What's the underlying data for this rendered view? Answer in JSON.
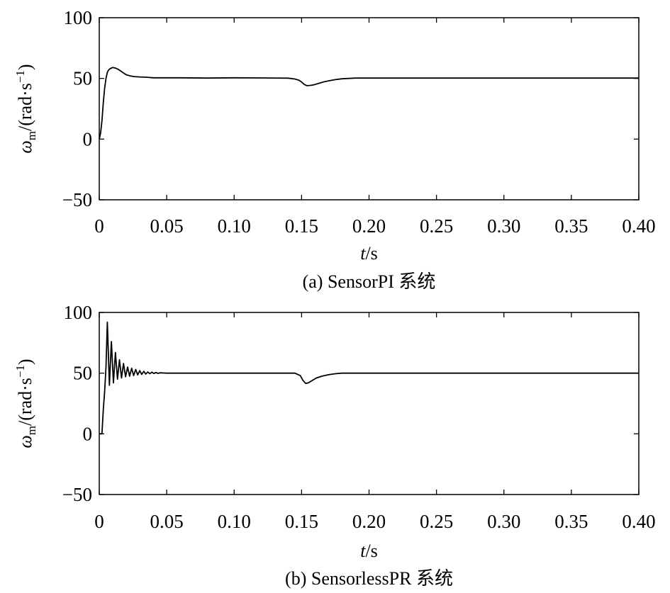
{
  "chart_data": [
    {
      "type": "line",
      "caption": "(a) SensorPI 系统",
      "xlabel": {
        "italic": "t",
        "rest": "/s"
      },
      "ylabel": {
        "symbol": "ω",
        "subscript": "m",
        "unit": "/(rad·s",
        "sup": "−1",
        "close": ")"
      },
      "xlim": [
        0,
        0.4
      ],
      "ylim": [
        -50,
        100
      ],
      "xticks": [
        0,
        0.05,
        0.1,
        0.15,
        0.2,
        0.25,
        0.3,
        0.35,
        0.4
      ],
      "xtick_labels": [
        "0",
        "0.05",
        "0.10",
        "0.15",
        "0.20",
        "0.25",
        "0.30",
        "0.35",
        "0.40"
      ],
      "yticks": [
        -50,
        0,
        50,
        100
      ],
      "ytick_labels": [
        "−50",
        "0",
        "50",
        "100"
      ],
      "grid": false,
      "series": [
        {
          "color": "#000000",
          "x": [
            0,
            0.001,
            0.002,
            0.003,
            0.004,
            0.005,
            0.006,
            0.007,
            0.008,
            0.01,
            0.012,
            0.014,
            0.016,
            0.018,
            0.02,
            0.023,
            0.026,
            0.03,
            0.035,
            0.04,
            0.06,
            0.08,
            0.1,
            0.12,
            0.14,
            0.145,
            0.148,
            0.15,
            0.152,
            0.154,
            0.156,
            0.158,
            0.16,
            0.163,
            0.166,
            0.17,
            0.175,
            0.18,
            0.19,
            0.2,
            0.25,
            0.3,
            0.35,
            0.4
          ],
          "y": [
            0,
            5,
            15,
            30,
            42,
            50,
            55,
            57,
            58,
            59,
            58.5,
            57.5,
            56,
            54.5,
            53,
            52,
            51.5,
            51.2,
            51,
            50.5,
            50.5,
            50.3,
            50.5,
            50.4,
            50.2,
            49.5,
            48.5,
            47,
            45,
            44,
            44.2,
            44.5,
            45,
            46,
            47,
            48,
            49,
            49.7,
            50.3,
            50.3,
            50.3,
            50.3,
            50.3,
            50.3
          ]
        }
      ]
    },
    {
      "type": "line",
      "caption": "(b) SensorlessPR 系统",
      "xlabel": {
        "italic": "t",
        "rest": "/s"
      },
      "ylabel": {
        "symbol": "ω",
        "subscript": "m",
        "unit": "/(rad·s",
        "sup": "−1",
        "close": ")"
      },
      "xlim": [
        0,
        0.4
      ],
      "ylim": [
        -50,
        100
      ],
      "xticks": [
        0,
        0.05,
        0.1,
        0.15,
        0.2,
        0.25,
        0.3,
        0.35,
        0.4
      ],
      "xtick_labels": [
        "0",
        "0.05",
        "0.10",
        "0.15",
        "0.20",
        "0.25",
        "0.30",
        "0.35",
        "0.40"
      ],
      "yticks": [
        -50,
        0,
        50,
        100
      ],
      "ytick_labels": [
        "−50",
        "0",
        "50",
        "100"
      ],
      "grid": false,
      "series": [
        {
          "color": "#000000",
          "x": [
            0,
            0.002,
            0.003,
            0.004,
            0.005,
            0.006,
            0.0075,
            0.009,
            0.0105,
            0.012,
            0.0135,
            0.015,
            0.0165,
            0.018,
            0.0195,
            0.021,
            0.0225,
            0.024,
            0.0255,
            0.027,
            0.0285,
            0.03,
            0.0315,
            0.033,
            0.0345,
            0.036,
            0.0375,
            0.039,
            0.0405,
            0.042,
            0.0435,
            0.045,
            0.048,
            0.05,
            0.1,
            0.145,
            0.149,
            0.151,
            0.153,
            0.155,
            0.158,
            0.161,
            0.165,
            0.17,
            0.175,
            0.18,
            0.2,
            0.3,
            0.4
          ],
          "y": [
            0,
            0,
            20,
            35,
            55,
            92,
            40,
            76,
            42,
            67,
            45,
            61,
            46,
            58,
            47,
            55,
            47.5,
            54,
            48,
            53,
            48.5,
            52,
            49,
            51.5,
            49.2,
            51,
            49.5,
            50.8,
            49.7,
            50.5,
            49.8,
            50.3,
            50.1,
            50,
            50,
            50,
            48,
            44,
            41.5,
            42,
            44,
            46,
            47.5,
            48.7,
            49.5,
            50,
            50,
            50,
            50
          ]
        }
      ]
    }
  ]
}
